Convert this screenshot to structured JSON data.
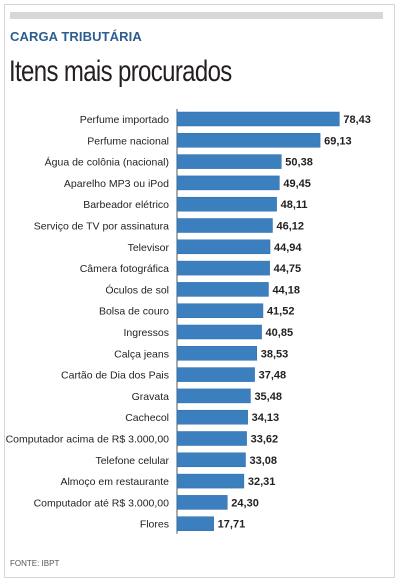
{
  "header": {
    "kicker": "CARGA TRIBUTÁRIA",
    "title": "Itens mais procurados"
  },
  "footer": {
    "source": "FONTE: IBPT"
  },
  "colors": {
    "bar": "#3b7fbf",
    "bar_edge": "#2a6aa8",
    "kicker": "#2c5d8f",
    "text": "#231f20"
  },
  "chart_data": {
    "type": "bar",
    "orientation": "horizontal",
    "title": "Itens mais procurados",
    "xlabel": "",
    "ylabel": "",
    "xlim": [
      0,
      80
    ],
    "grid": false,
    "categories": [
      "Perfume importado",
      "Perfume nacional",
      "Água de colônia (nacional)",
      "Aparelho MP3 ou iPod",
      "Barbeador elétrico",
      "Serviço de TV por assinatura",
      "Televisor",
      "Câmera fotográfica",
      "Óculos de sol",
      "Bolsa de couro",
      "Ingressos",
      "Calça jeans",
      "Cartão de Dia dos Pais",
      "Gravata",
      "Cachecol",
      "Computador acima de R$ 3.000,00",
      "Telefone celular",
      "Almoço em restaurante",
      "Computador até R$ 3.000,00",
      "Flores"
    ],
    "values": [
      78.43,
      69.13,
      50.38,
      49.45,
      48.11,
      46.12,
      44.94,
      44.75,
      44.18,
      41.52,
      40.85,
      38.53,
      37.48,
      35.48,
      34.13,
      33.62,
      33.08,
      32.31,
      24.3,
      17.71
    ],
    "value_labels": [
      "78,43",
      "69,13",
      "50,38",
      "49,45",
      "48,11",
      "46,12",
      "44,94",
      "44,75",
      "44,18",
      "41,52",
      "40,85",
      "38,53",
      "37,48",
      "35,48",
      "34,13",
      "33,62",
      "33,08",
      "32,31",
      "24,30",
      "17,71"
    ]
  }
}
